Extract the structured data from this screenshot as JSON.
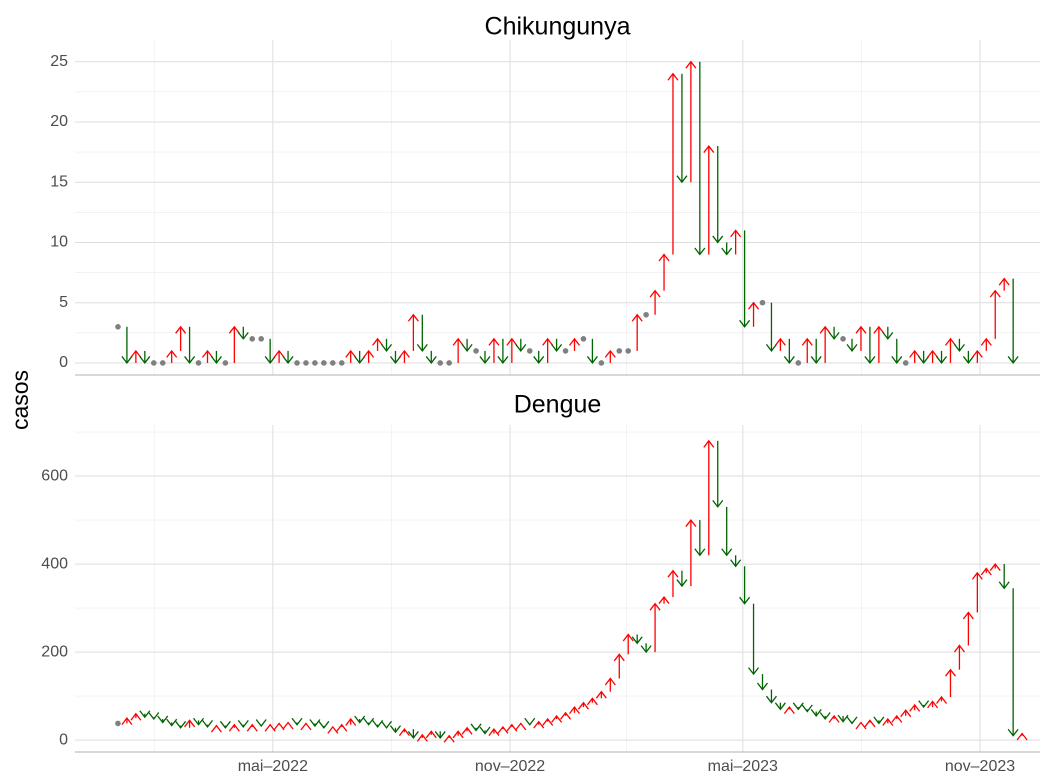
{
  "y_label": "casos",
  "chart_data": [
    {
      "type": "arrow",
      "title": "Chikungunya",
      "up_color": "#ff0000",
      "down_color": "#006400",
      "same_color": "#808080",
      "grid": true,
      "x": [
        1,
        2,
        3,
        4,
        5,
        6,
        7,
        8,
        9,
        10,
        11,
        12,
        13,
        14,
        15,
        16,
        17,
        18,
        19,
        20,
        21,
        22,
        23,
        24,
        25,
        26,
        27,
        28,
        29,
        30,
        31,
        32,
        33,
        34,
        35,
        36,
        37,
        38,
        39,
        40,
        41,
        42,
        43,
        44,
        45,
        46,
        47,
        48,
        49,
        50,
        51,
        52,
        53,
        54,
        55,
        56,
        57,
        58,
        59,
        60,
        61,
        62,
        63,
        64,
        65,
        66,
        67,
        68,
        69,
        70,
        71,
        72,
        73,
        74,
        75,
        76,
        77,
        78,
        79,
        80,
        81,
        82,
        83,
        84,
        85,
        86,
        87,
        88,
        89,
        90,
        91,
        92,
        93,
        94,
        95,
        96,
        97,
        98,
        99,
        100,
        101
      ],
      "values": [
        3,
        0,
        1,
        0,
        0,
        0,
        1,
        3,
        0,
        0,
        1,
        0,
        0,
        3,
        2,
        2,
        2,
        0,
        1,
        0,
        0,
        0,
        0,
        0,
        0,
        0,
        1,
        0,
        1,
        2,
        1,
        0,
        1,
        4,
        1,
        0,
        0,
        0,
        2,
        1,
        1,
        0,
        2,
        0,
        2,
        1,
        1,
        0,
        2,
        1,
        1,
        2,
        2,
        0,
        0,
        1,
        1,
        1,
        4,
        4,
        6,
        9,
        24,
        15,
        25,
        9,
        18,
        10,
        9,
        11,
        3,
        5,
        5,
        1,
        2,
        0,
        0,
        2,
        0,
        3,
        2,
        2,
        1,
        3,
        0,
        3,
        2,
        0,
        0,
        1,
        0,
        1,
        0,
        2,
        1,
        0,
        1,
        2,
        6,
        7,
        0
      ],
      "xlim": [
        -3.8,
        104
      ],
      "ylim": [
        -1.0,
        26.8
      ],
      "yticks": [
        0,
        5,
        10,
        15,
        20,
        25
      ],
      "xticks": [
        {
          "value": 18.3,
          "label": "mai–2022"
        },
        {
          "value": 44.8,
          "label": "nov–2022"
        },
        {
          "value": 70.8,
          "label": "mai–2023"
        },
        {
          "value": 97.3,
          "label": "nov–2023"
        }
      ]
    },
    {
      "type": "arrow",
      "title": "Dengue",
      "up_color": "#ff0000",
      "down_color": "#006400",
      "same_color": "#808080",
      "grid": true,
      "x": [
        1,
        2,
        3,
        4,
        5,
        6,
        7,
        8,
        9,
        10,
        11,
        12,
        13,
        14,
        15,
        16,
        17,
        18,
        19,
        20,
        21,
        22,
        23,
        24,
        25,
        26,
        27,
        28,
        29,
        30,
        31,
        32,
        33,
        34,
        35,
        36,
        37,
        38,
        39,
        40,
        41,
        42,
        43,
        44,
        45,
        46,
        47,
        48,
        49,
        50,
        51,
        52,
        53,
        54,
        55,
        56,
        57,
        58,
        59,
        60,
        61,
        62,
        63,
        64,
        65,
        66,
        67,
        68,
        69,
        70,
        71,
        72,
        73,
        74,
        75,
        76,
        77,
        78,
        79,
        80,
        81,
        82,
        83,
        84,
        85,
        86,
        87,
        88,
        89,
        90,
        91,
        92,
        93,
        94,
        95,
        96,
        97,
        98,
        99,
        100,
        101,
        102
      ],
      "values": [
        38,
        50,
        60,
        52,
        48,
        40,
        33,
        28,
        45,
        35,
        30,
        33,
        28,
        35,
        30,
        35,
        32,
        35,
        38,
        40,
        35,
        38,
        32,
        28,
        30,
        35,
        48,
        40,
        35,
        30,
        28,
        18,
        25,
        5,
        12,
        20,
        5,
        10,
        20,
        28,
        22,
        15,
        25,
        30,
        35,
        38,
        35,
        42,
        48,
        55,
        62,
        75,
        85,
        95,
        110,
        140,
        195,
        240,
        220,
        200,
        310,
        325,
        385,
        350,
        500,
        420,
        680,
        530,
        420,
        395,
        310,
        150,
        115,
        85,
        70,
        75,
        70,
        65,
        55,
        48,
        55,
        42,
        38,
        40,
        45,
        38,
        48,
        55,
        68,
        80,
        75,
        88,
        98,
        160,
        215,
        290,
        380,
        390,
        400,
        345,
        10,
        15
      ],
      "xlim": [
        -3.8,
        104
      ],
      "ylim": [
        -27,
        716
      ],
      "yticks": [
        0,
        200,
        400,
        600
      ],
      "xticks": [
        {
          "value": 18.3,
          "label": "mai–2022"
        },
        {
          "value": 44.8,
          "label": "nov–2022"
        },
        {
          "value": 70.8,
          "label": "mai–2023"
        },
        {
          "value": 97.3,
          "label": "nov–2023"
        }
      ]
    }
  ]
}
